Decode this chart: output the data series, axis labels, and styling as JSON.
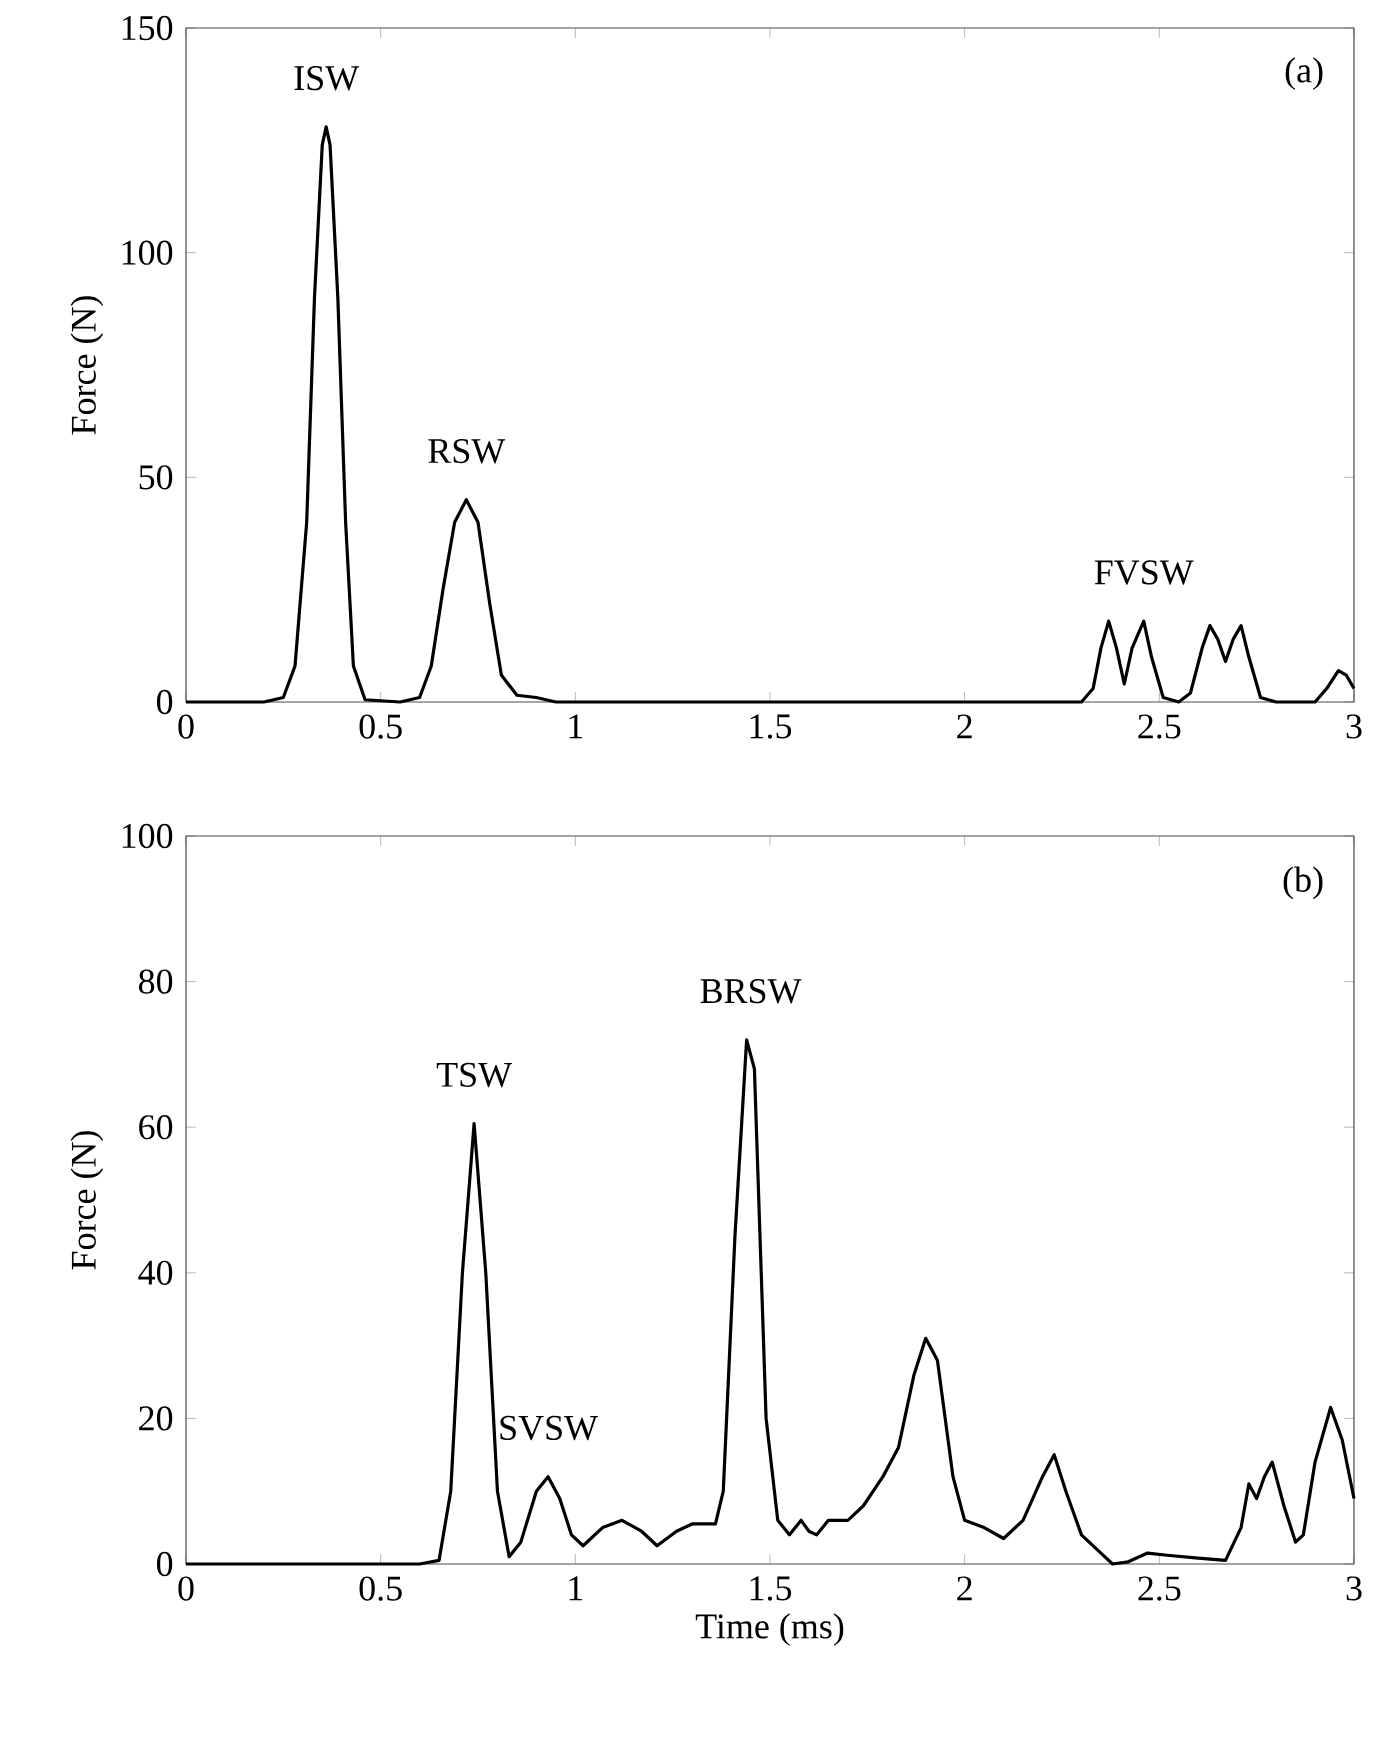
{
  "chart_data": [
    {
      "type": "line",
      "ylabel": "Force (N)",
      "xlim": [
        0,
        3
      ],
      "ylim": [
        0,
        150
      ],
      "xticks": [
        0,
        0.5,
        1,
        1.5,
        2,
        2.5,
        3
      ],
      "yticks": [
        0,
        50,
        100,
        150
      ],
      "x": [
        0,
        0.2,
        0.25,
        0.28,
        0.31,
        0.33,
        0.35,
        0.36,
        0.37,
        0.39,
        0.41,
        0.43,
        0.46,
        0.55,
        0.6,
        0.63,
        0.66,
        0.69,
        0.72,
        0.75,
        0.78,
        0.81,
        0.85,
        0.9,
        0.95,
        2.3,
        2.33,
        2.35,
        2.37,
        2.39,
        2.41,
        2.43,
        2.46,
        2.48,
        2.51,
        2.55,
        2.58,
        2.61,
        2.63,
        2.65,
        2.67,
        2.69,
        2.71,
        2.73,
        2.76,
        2.8,
        2.9,
        2.93,
        2.96,
        2.98,
        3
      ],
      "series": [
        {
          "color": "#000000",
          "values": [
            0,
            0,
            1,
            8,
            40,
            90,
            124,
            128,
            124,
            90,
            40,
            8,
            0.5,
            0,
            1,
            8,
            25,
            40,
            45,
            40,
            22,
            6,
            1.5,
            1,
            0,
            0,
            3,
            12,
            18,
            12,
            4,
            12,
            18,
            10,
            1,
            0,
            2,
            12,
            17,
            14,
            9,
            14,
            17,
            10,
            1,
            0,
            0,
            3,
            7,
            6,
            3
          ]
        }
      ],
      "annotations": [
        {
          "text": "ISW",
          "x": 0.36,
          "y": 128
        },
        {
          "text": "RSW",
          "x": 0.72,
          "y": 45
        },
        {
          "text": "FVSW",
          "x": 2.46,
          "y": 18
        },
        "(a)"
      ]
    },
    {
      "type": "line",
      "xlabel": "Time (ms)",
      "ylabel": "Force (N)",
      "xlim": [
        0,
        3
      ],
      "ylim": [
        0,
        100
      ],
      "xticks": [
        0,
        0.5,
        1,
        1.5,
        2,
        2.5,
        3
      ],
      "yticks": [
        0,
        20,
        40,
        60,
        80,
        100
      ],
      "x": [
        0,
        0.6,
        0.65,
        0.68,
        0.71,
        0.74,
        0.77,
        0.8,
        0.83,
        0.86,
        0.9,
        0.93,
        0.96,
        0.99,
        1.02,
        1.07,
        1.12,
        1.17,
        1.21,
        1.26,
        1.3,
        1.36,
        1.38,
        1.41,
        1.44,
        1.46,
        1.49,
        1.52,
        1.55,
        1.58,
        1.6,
        1.62,
        1.65,
        1.7,
        1.74,
        1.79,
        1.83,
        1.87,
        1.9,
        1.93,
        1.97,
        2.0,
        2.05,
        2.1,
        2.15,
        2.2,
        2.23,
        2.26,
        2.3,
        2.35,
        2.38,
        2.42,
        2.47,
        2.52,
        2.6,
        2.67,
        2.71,
        2.73,
        2.75,
        2.77,
        2.79,
        2.82,
        2.85,
        2.87,
        2.9,
        2.94,
        2.97,
        3
      ],
      "series": [
        {
          "color": "#000000",
          "values": [
            0,
            0,
            0.5,
            10,
            40,
            60.5,
            40,
            10,
            1,
            3,
            10,
            12,
            9,
            4,
            2.5,
            5,
            6,
            4.5,
            2.5,
            4.5,
            5.5,
            5.5,
            10,
            45,
            72,
            68,
            20,
            6,
            4,
            6,
            4.5,
            4,
            6,
            6,
            8,
            12,
            16,
            26,
            31,
            28,
            12,
            6,
            5,
            3.5,
            6,
            12,
            15,
            10,
            4,
            1.5,
            0,
            0.3,
            1.5,
            1.2,
            0.8,
            0.5,
            5,
            11,
            9,
            12,
            14,
            8,
            3,
            4,
            14,
            21.5,
            17,
            9
          ]
        }
      ],
      "annotations": [
        {
          "text": "TSW",
          "x": 0.74,
          "y": 60.5
        },
        {
          "text": "SVSW",
          "x": 0.93,
          "y": 12
        },
        {
          "text": "BRSW",
          "x": 1.45,
          "y": 72
        },
        "(b)"
      ]
    }
  ]
}
